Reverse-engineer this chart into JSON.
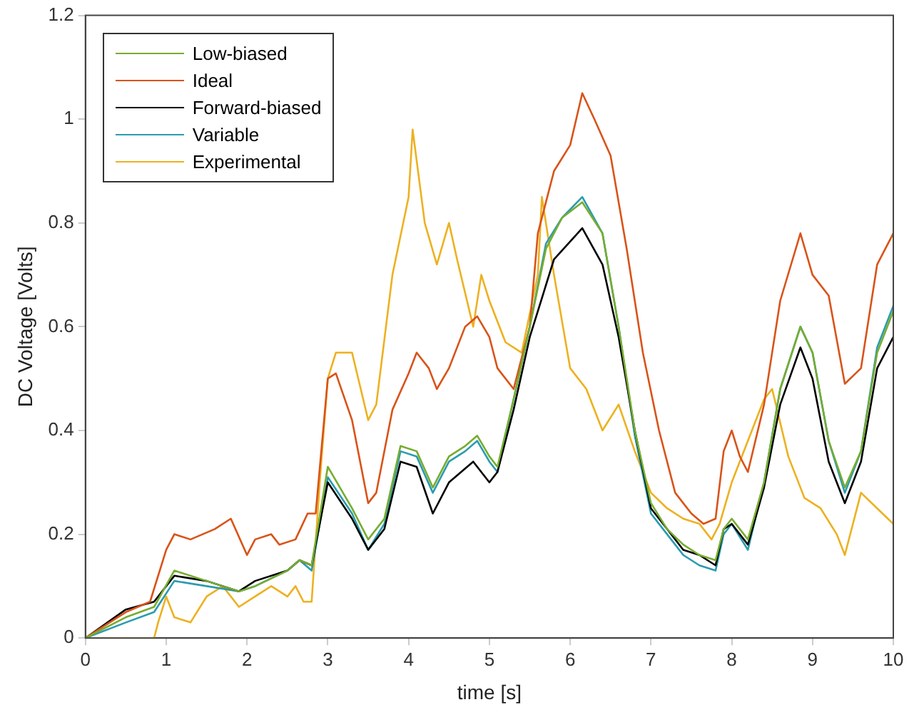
{
  "chart_data": {
    "type": "line",
    "xlabel": "time [s]",
    "ylabel": "DC Voltage [Volts]",
    "xlim": [
      0,
      10
    ],
    "xticks": [
      0,
      1,
      2,
      3,
      4,
      5,
      6,
      7,
      8,
      9,
      10
    ],
    "ylim": [
      0,
      1.2
    ],
    "yticks": [
      0,
      0.2,
      0.4,
      0.6,
      0.8,
      1,
      1.2
    ],
    "grid": false,
    "legend": "top left",
    "marker": "none",
    "line_style": "solid",
    "series": [
      {
        "name": "Low-biased",
        "color": "#77ac30",
        "x": [
          0,
          0.5,
          0.85,
          1.1,
          1.5,
          1.9,
          2.1,
          2.5,
          2.65,
          2.8,
          3.0,
          3.3,
          3.5,
          3.7,
          3.9,
          4.1,
          4.3,
          4.5,
          4.7,
          4.85,
          5.0,
          5.1,
          5.3,
          5.5,
          5.7,
          5.9,
          6.15,
          6.4,
          6.6,
          6.8,
          7.0,
          7.2,
          7.4,
          7.6,
          7.8,
          7.9,
          8.0,
          8.2,
          8.4,
          8.6,
          8.85,
          9.0,
          9.2,
          9.4,
          9.6,
          9.8,
          10
        ],
        "values": [
          0,
          0.04,
          0.06,
          0.13,
          0.11,
          0.09,
          0.1,
          0.13,
          0.15,
          0.14,
          0.33,
          0.25,
          0.19,
          0.23,
          0.37,
          0.36,
          0.29,
          0.35,
          0.37,
          0.39,
          0.35,
          0.33,
          0.46,
          0.6,
          0.75,
          0.81,
          0.84,
          0.78,
          0.6,
          0.4,
          0.26,
          0.21,
          0.18,
          0.16,
          0.15,
          0.21,
          0.23,
          0.19,
          0.3,
          0.48,
          0.6,
          0.55,
          0.38,
          0.29,
          0.36,
          0.55,
          0.63
        ]
      },
      {
        "name": "Ideal",
        "color": "#d95319",
        "x": [
          0,
          0.5,
          0.8,
          1.0,
          1.1,
          1.3,
          1.6,
          1.8,
          2.0,
          2.1,
          2.3,
          2.4,
          2.6,
          2.75,
          2.85,
          3.0,
          3.1,
          3.3,
          3.5,
          3.6,
          3.8,
          4.0,
          4.1,
          4.25,
          4.35,
          4.5,
          4.7,
          4.85,
          5.0,
          5.1,
          5.3,
          5.5,
          5.6,
          5.8,
          6.0,
          6.15,
          6.3,
          6.5,
          6.7,
          6.9,
          7.1,
          7.3,
          7.5,
          7.65,
          7.8,
          7.9,
          8.0,
          8.1,
          8.2,
          8.4,
          8.6,
          8.85,
          9.0,
          9.2,
          9.4,
          9.6,
          9.8,
          10
        ],
        "values": [
          0,
          0.05,
          0.07,
          0.17,
          0.2,
          0.19,
          0.21,
          0.23,
          0.16,
          0.19,
          0.2,
          0.18,
          0.19,
          0.24,
          0.24,
          0.5,
          0.51,
          0.42,
          0.26,
          0.28,
          0.44,
          0.51,
          0.55,
          0.52,
          0.48,
          0.52,
          0.6,
          0.62,
          0.58,
          0.52,
          0.48,
          0.6,
          0.78,
          0.9,
          0.95,
          1.05,
          1.0,
          0.93,
          0.75,
          0.55,
          0.4,
          0.28,
          0.24,
          0.22,
          0.23,
          0.36,
          0.4,
          0.35,
          0.32,
          0.45,
          0.65,
          0.78,
          0.7,
          0.66,
          0.49,
          0.52,
          0.72,
          0.78
        ]
      },
      {
        "name": "Forward-biased",
        "color": "#000000",
        "x": [
          0,
          0.5,
          0.85,
          1.1,
          1.5,
          1.9,
          2.1,
          2.5,
          2.65,
          2.8,
          3.0,
          3.3,
          3.5,
          3.7,
          3.9,
          4.1,
          4.3,
          4.5,
          4.8,
          5.0,
          5.1,
          5.3,
          5.5,
          5.8,
          6.15,
          6.4,
          6.6,
          6.8,
          7.0,
          7.2,
          7.4,
          7.6,
          7.8,
          7.9,
          8.0,
          8.2,
          8.4,
          8.6,
          8.85,
          9.0,
          9.2,
          9.4,
          9.6,
          9.8,
          10
        ],
        "values": [
          0,
          0.055,
          0.07,
          0.12,
          0.11,
          0.09,
          0.11,
          0.13,
          0.15,
          0.14,
          0.3,
          0.23,
          0.17,
          0.21,
          0.34,
          0.33,
          0.24,
          0.3,
          0.34,
          0.3,
          0.32,
          0.44,
          0.58,
          0.73,
          0.79,
          0.72,
          0.58,
          0.4,
          0.25,
          0.21,
          0.17,
          0.16,
          0.14,
          0.21,
          0.22,
          0.18,
          0.29,
          0.45,
          0.56,
          0.5,
          0.34,
          0.26,
          0.34,
          0.52,
          0.58
        ]
      },
      {
        "name": "Variable",
        "color": "#2a9bb0",
        "x": [
          0,
          0.5,
          0.85,
          1.1,
          1.5,
          1.9,
          2.1,
          2.5,
          2.65,
          2.8,
          3.0,
          3.3,
          3.5,
          3.7,
          3.9,
          4.1,
          4.3,
          4.5,
          4.7,
          4.85,
          5.0,
          5.1,
          5.3,
          5.5,
          5.7,
          5.9,
          6.15,
          6.4,
          6.6,
          6.8,
          7.0,
          7.2,
          7.4,
          7.6,
          7.8,
          7.9,
          8.0,
          8.2,
          8.4,
          8.6,
          8.85,
          9.0,
          9.2,
          9.4,
          9.6,
          9.8,
          10
        ],
        "values": [
          0,
          0.03,
          0.05,
          0.11,
          0.1,
          0.09,
          0.1,
          0.13,
          0.15,
          0.13,
          0.31,
          0.24,
          0.17,
          0.22,
          0.36,
          0.35,
          0.28,
          0.34,
          0.36,
          0.38,
          0.34,
          0.32,
          0.46,
          0.6,
          0.76,
          0.81,
          0.85,
          0.78,
          0.6,
          0.39,
          0.24,
          0.2,
          0.16,
          0.14,
          0.13,
          0.2,
          0.22,
          0.17,
          0.3,
          0.48,
          0.6,
          0.55,
          0.38,
          0.28,
          0.36,
          0.56,
          0.64
        ]
      },
      {
        "name": "Experimental",
        "color": "#edb120",
        "x": [
          0,
          0.85,
          0.9,
          1.0,
          1.1,
          1.3,
          1.5,
          1.7,
          1.9,
          2.1,
          2.3,
          2.5,
          2.6,
          2.7,
          2.8,
          2.9,
          3.0,
          3.1,
          3.3,
          3.5,
          3.6,
          3.8,
          4.0,
          4.05,
          4.2,
          4.35,
          4.5,
          4.6,
          4.8,
          4.9,
          5.0,
          5.2,
          5.4,
          5.6,
          5.65,
          5.8,
          6.0,
          6.2,
          6.4,
          6.6,
          6.8,
          7.0,
          7.2,
          7.4,
          7.6,
          7.75,
          7.85,
          8.0,
          8.2,
          8.4,
          8.5,
          8.7,
          8.9,
          9.1,
          9.3,
          9.4,
          9.6,
          9.8,
          10
        ],
        "values": [
          0,
          0,
          0.03,
          0.08,
          0.04,
          0.03,
          0.08,
          0.1,
          0.06,
          0.08,
          0.1,
          0.08,
          0.1,
          0.07,
          0.07,
          0.3,
          0.5,
          0.55,
          0.55,
          0.42,
          0.45,
          0.7,
          0.85,
          0.98,
          0.8,
          0.72,
          0.8,
          0.73,
          0.6,
          0.7,
          0.65,
          0.57,
          0.55,
          0.7,
          0.85,
          0.7,
          0.52,
          0.48,
          0.4,
          0.45,
          0.36,
          0.28,
          0.25,
          0.23,
          0.22,
          0.19,
          0.22,
          0.3,
          0.38,
          0.46,
          0.48,
          0.35,
          0.27,
          0.25,
          0.2,
          0.16,
          0.28,
          0.25,
          0.22
        ]
      }
    ]
  }
}
